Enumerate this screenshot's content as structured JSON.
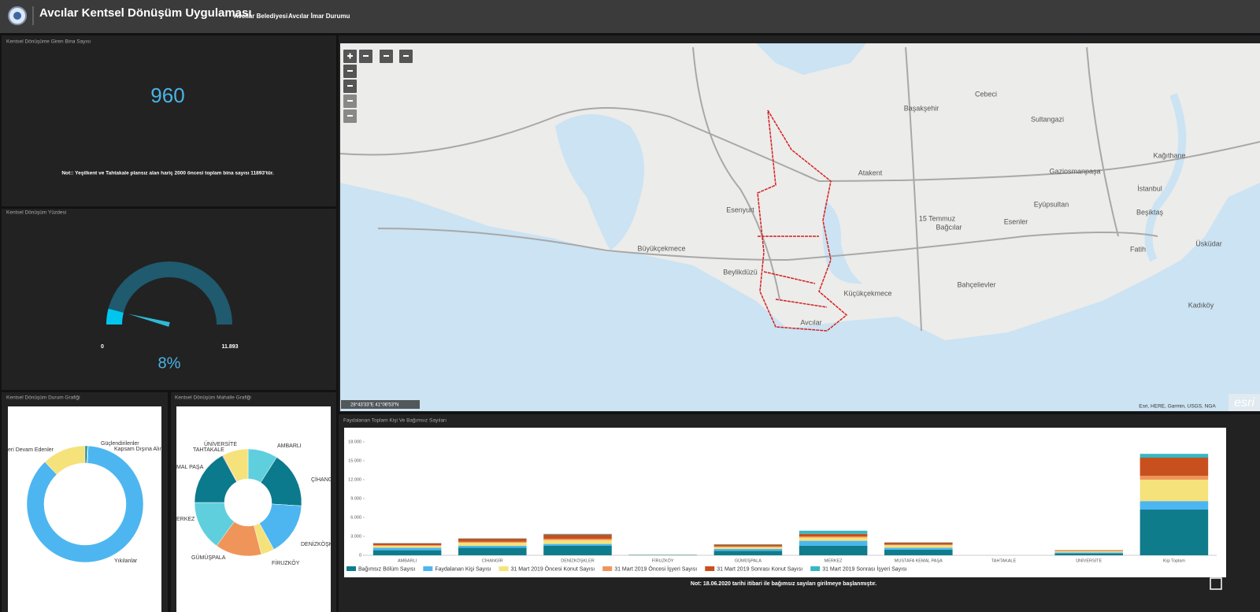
{
  "header": {
    "title": "Avcılar Kentsel Dönüşüm Uygulaması",
    "links": [
      "Avcılar Belediyesi",
      "Avcılar İmar Durumu"
    ]
  },
  "counter": {
    "title": "Kentsel Dönüşüme Giren Bina Sayısı",
    "value": 960,
    "note": "Not:: Yeşilkent ve Tahtakale plansız alan hariç 2000 öncesi toplam bina sayısı 11893'tür."
  },
  "gauge": {
    "title": "Kentsel Dönüşüm Yüzdesi",
    "min": 0,
    "max": {
      "value": 11893,
      "label": "11.893"
    },
    "percent": {
      "value": 8,
      "label": "8%"
    }
  },
  "status_chart": {
    "type": "donut",
    "title": "Kentsel Dönüşüm Durum Grafiği",
    "labels": [
      "Güçlendirilenler",
      "Kapsam Dışına Alın",
      "Yıkılanlar",
      "eri Devam Edenler"
    ],
    "values": [
      0.6,
      0.3,
      87,
      12.1
    ],
    "colors": [
      "#0b7a8c",
      "#35b8c4",
      "#4db6f0",
      "#f5e27a"
    ]
  },
  "district_chart": {
    "type": "donut",
    "title": "Kentsel Dönüşüm Mahalle Grafiği",
    "labels": [
      "AMBARLI",
      "ÇİHANG",
      "DENİZKÖŞKL",
      "FİRUZKÖY",
      "GÜMÜŞPALA",
      "ERKEZ",
      "MAL PAŞA",
      "TAHTAKALE",
      "ÜNİVERSİTE"
    ],
    "values": [
      9,
      17,
      16,
      4,
      14,
      15,
      17,
      0.3,
      7.7
    ],
    "colors": [
      "#5fcfdd",
      "#0b7a8c",
      "#4db6f0",
      "#f5e27a",
      "#f0955a",
      "#5fcfdd",
      "#0b7a8c",
      "#f0955a",
      "#f5e27a"
    ]
  },
  "map": {
    "labels": [
      "Esenyurt",
      "Büyükçekmece",
      "Beylikdüzü",
      "Avcılar",
      "Küçükçekmece",
      "Başakşehir",
      "Sultangazi",
      "Kağıthane",
      "Bağcılar",
      "Esenler",
      "Bahçelievler",
      "Fatih",
      "Üsküdar",
      "Kadıköy",
      "İstanbul",
      "Eyüpsultan",
      "Gaziosmanpaşa",
      "Beşiktaş",
      "Atakent",
      "Cebeci",
      "15 Temmuz"
    ],
    "coordinates": "28°43'33\"E 41°06'53\"N",
    "attribution": "Esri, HERE, Garmin, USGS, NGA",
    "logo": "esri"
  },
  "bar_chart": {
    "type": "bar",
    "stacked": true,
    "title": "Faydalanan Toplam Kişi Ve Bağımsız Sayıları",
    "categories": [
      "AMBARLI",
      "CİHANGİR",
      "DENİZKÖŞKLER",
      "FİRUZKÖY",
      "GÜMÜŞPALA",
      "MERKEZ",
      "MUSTAFA KEMAL PAŞA",
      "TAHTAKALE",
      "ÜNİVERSİTE",
      "Kişi Toplam"
    ],
    "series": [
      {
        "name": "Bağımsız Bölüm Sayısı",
        "color": "#0f7c8c",
        "values": [
          800,
          1200,
          1500,
          50,
          700,
          1500,
          900,
          0,
          300,
          7250
        ]
      },
      {
        "name": "Faydalanan Kişi Sayısı",
        "color": "#4db6f0",
        "values": [
          400,
          300,
          300,
          20,
          300,
          800,
          300,
          0,
          150,
          1350
        ]
      },
      {
        "name": "31 Mart 2019 Öncesi Konut Sayısı",
        "color": "#f5e27a",
        "values": [
          300,
          500,
          600,
          20,
          300,
          500,
          400,
          0,
          200,
          3400
        ]
      },
      {
        "name": "31 Mart 2019 Öncesi İşyeri Sayısı",
        "color": "#f0955a",
        "values": [
          100,
          150,
          200,
          0,
          100,
          200,
          100,
          0,
          50,
          600
        ]
      },
      {
        "name": "31 Mart 2019 Sonrası Konut Sayısı",
        "color": "#c8501e",
        "values": [
          300,
          500,
          700,
          10,
          300,
          400,
          300,
          0,
          100,
          2900
        ]
      },
      {
        "name": "31 Mart 2019 Sonrası İşyeri Sayısı",
        "color": "#35b8c4",
        "values": [
          50,
          50,
          100,
          0,
          50,
          500,
          50,
          0,
          20,
          600
        ]
      }
    ],
    "ylim": [
      0,
      18000
    ],
    "yticks": [
      0,
      {
        "value": 3000,
        "label": "3.000"
      },
      {
        "value": 6000,
        "label": "6.000"
      },
      {
        "value": 9000,
        "label": "9.000"
      },
      {
        "value": 12000,
        "label": "12.000"
      },
      {
        "value": 15000,
        "label": "15.000"
      },
      {
        "value": 18000,
        "label": "18.000"
      }
    ],
    "note": "Not: 18.06.2020 tarihi itibari ile bağımsız sayıları girilmeye başlanmıştır."
  }
}
